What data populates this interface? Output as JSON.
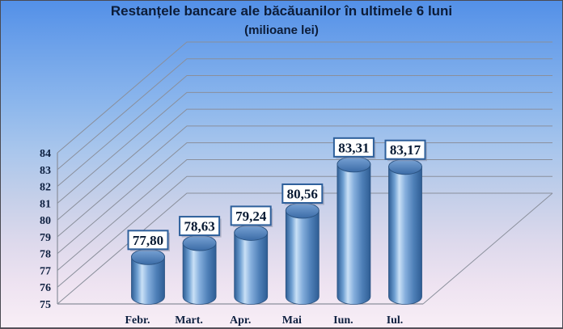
{
  "header": {
    "title": "Restanțele bancare ale băcăuanilor în ultimele 6 luni",
    "subtitle": "(milioane lei)"
  },
  "chart_data": {
    "type": "bar",
    "style": "3d-cylinder",
    "title": "Restanțele bancare ale băcăuanilor în ultimele 6 luni",
    "subtitle": "(milioane lei)",
    "categories": [
      "Febr.",
      "Mart.",
      "Apr.",
      "Mai",
      "Iun.",
      "Iul."
    ],
    "values": [
      77.8,
      78.63,
      79.24,
      80.56,
      83.31,
      83.17
    ],
    "value_labels": [
      "77,80",
      "78,63",
      "79,24",
      "80,56",
      "83,31",
      "83,17"
    ],
    "xlabel": "",
    "ylabel": "",
    "ylim": [
      75,
      84
    ],
    "yticks": [
      75,
      76,
      77,
      78,
      79,
      80,
      81,
      82,
      83,
      84
    ],
    "grid": true,
    "legend": false
  },
  "colors": {
    "background_top": "#5390e8",
    "background_bottom": "#f8eef6",
    "text": "#0c1c38",
    "gridline": "#8a8f9b",
    "cylinder_dark": "#2e5d94",
    "cylinder_mid": "#6fa0d2",
    "cylinder_light": "#c9e0f6",
    "cylinder_top_light": "#7aa4d6",
    "cylinder_top_dark": "#3b6ba6",
    "label_box_bg": "#ffffff",
    "label_box_border": "#2d5f9b"
  }
}
